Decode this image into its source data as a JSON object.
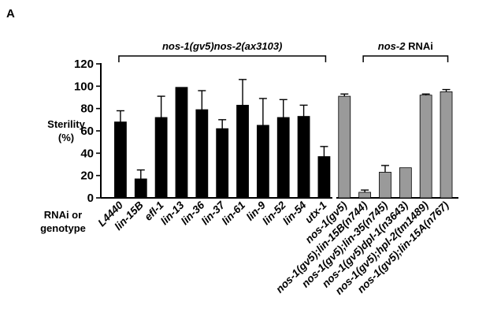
{
  "panel_label": "A",
  "y_axis_label": {
    "line1": "Sterility",
    "line2": "(%)"
  },
  "x_axis_label": {
    "line1": "RNAi or",
    "line2": "genotype"
  },
  "colors": {
    "series1": "#000000",
    "series2": "#9a9a9a",
    "axis": "#000000"
  },
  "chart_data": {
    "type": "bar",
    "ylim": [
      0,
      120
    ],
    "yticks": [
      0,
      20,
      40,
      60,
      80,
      100,
      120
    ],
    "grid": false,
    "error_bars": true,
    "groups": [
      {
        "label": "nos-1(gv5)nos-2(ax3103)",
        "label_style": "italic",
        "start": 0,
        "end": 11
      },
      {
        "label": "nos-2 RNAi",
        "label_style": "italic-partial",
        "start": 12,
        "end": 17
      }
    ],
    "bars": [
      {
        "category": "L4440",
        "italic": false,
        "value": 68,
        "error": 10,
        "series": 0
      },
      {
        "category": "lin-15B",
        "italic": true,
        "value": 17,
        "error": 8,
        "series": 0
      },
      {
        "category": "efl-1",
        "italic": true,
        "value": 72,
        "error": 19,
        "series": 0
      },
      {
        "category": "lin-13",
        "italic": true,
        "value": 99,
        "error": 0,
        "series": 0
      },
      {
        "category": "lin-36",
        "italic": true,
        "value": 79,
        "error": 17,
        "series": 0
      },
      {
        "category": "lin-37",
        "italic": true,
        "value": 62,
        "error": 8,
        "series": 0
      },
      {
        "category": "lin-61",
        "italic": true,
        "value": 83,
        "error": 23,
        "series": 0
      },
      {
        "category": "lin-9",
        "italic": true,
        "value": 65,
        "error": 24,
        "series": 0
      },
      {
        "category": "lin-52",
        "italic": true,
        "value": 72,
        "error": 16,
        "series": 0
      },
      {
        "category": "lin-54",
        "italic": true,
        "value": 73,
        "error": 10,
        "series": 0
      },
      {
        "category": "utx-1",
        "italic": true,
        "value": 37,
        "error": 9,
        "series": 0
      },
      {
        "category": "nos-1(gv5)",
        "italic": true,
        "value": 91,
        "error": 2,
        "series": 1
      },
      {
        "category": "nos-1(gv5);lin-15B(n744)",
        "italic": true,
        "value": 5,
        "error": 2,
        "series": 1
      },
      {
        "category": "nos-1(gv5);lin-35(n745)",
        "italic": true,
        "value": 23,
        "error": 6,
        "series": 1
      },
      {
        "category": "nos-1(gv5)dpl-1(n3643)",
        "italic": true,
        "value": 27,
        "error": 0,
        "series": 1
      },
      {
        "category": "nos-1(gv5);hpl-2(tm1489)",
        "italic": true,
        "value": 92,
        "error": 1,
        "series": 1
      },
      {
        "category": "nos-1(gv5);lin-15A(n767)",
        "italic": true,
        "value": 95,
        "error": 2,
        "series": 1
      }
    ]
  }
}
